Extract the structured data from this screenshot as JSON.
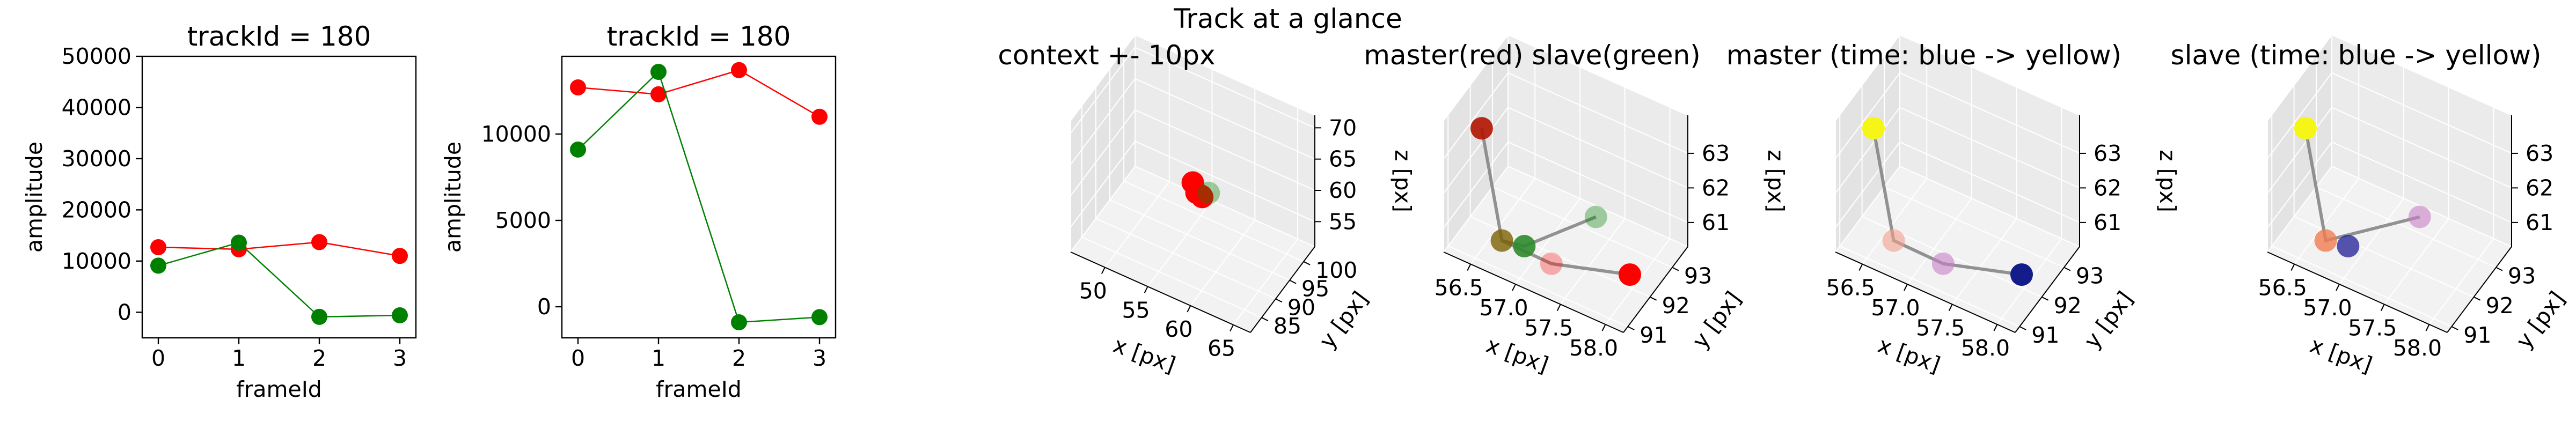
{
  "figure": {
    "title": "Track at a glance"
  },
  "chart_data": [
    {
      "type": "line",
      "title": "trackId = 180",
      "xlabel": "frameId",
      "ylabel": "amplitude",
      "x": [
        0,
        1,
        2,
        3
      ],
      "xticks": [
        0,
        1,
        2,
        3
      ],
      "xlim": [
        -0.2,
        3.2
      ],
      "yticks": [
        0,
        10000,
        20000,
        30000,
        40000,
        50000
      ],
      "ylim": [
        -5000,
        50000
      ],
      "grid": false,
      "series": [
        {
          "color": "#ff0000",
          "values": [
            12700,
            12300,
            13700,
            11000
          ]
        },
        {
          "color": "#008000",
          "values": [
            9100,
            13600,
            -900,
            -600
          ]
        }
      ]
    },
    {
      "type": "line",
      "title": "trackId = 180",
      "xlabel": "frameId",
      "ylabel": "amplitude",
      "x": [
        0,
        1,
        2,
        3
      ],
      "xticks": [
        0,
        1,
        2,
        3
      ],
      "xlim": [
        -0.2,
        3.2
      ],
      "yticks": [
        0,
        5000,
        10000
      ],
      "ylim": [
        -1800,
        14500
      ],
      "grid": false,
      "series": [
        {
          "color": "#ff0000",
          "values": [
            12700,
            12300,
            13700,
            11000
          ]
        },
        {
          "color": "#008000",
          "values": [
            9100,
            13600,
            -900,
            -600
          ]
        }
      ]
    },
    {
      "type": "scatter",
      "title": "context +- 10px",
      "xlabel": "x [px]",
      "ylabel": "y [px]",
      "zlabel": "z [px]",
      "xticks": [
        50,
        55,
        60,
        65
      ],
      "yticks": [
        85,
        90,
        95,
        100
      ],
      "zticks": [
        55,
        60,
        65,
        70
      ],
      "xlim": [
        46,
        67
      ],
      "ylim": [
        81,
        104
      ],
      "zlim": [
        51,
        72
      ],
      "points": [
        {
          "x": 56.8,
          "y": 91.6,
          "z": 62.4,
          "color": "#ff0000",
          "alpha": 1
        },
        {
          "x": 57.3,
          "y": 91.4,
          "z": 61.2,
          "color": "#ff0000",
          "alpha": 1
        },
        {
          "x": 57.6,
          "y": 92.2,
          "z": 60.4,
          "color": "#ff0000",
          "alpha": 1
        },
        {
          "x": 58.0,
          "y": 91.3,
          "z": 61.0,
          "color": "#ff0000",
          "alpha": 1
        },
        {
          "x": 58.3,
          "y": 92.7,
          "z": 61.0,
          "color": "#008000",
          "alpha": 0.35
        }
      ]
    },
    {
      "type": "scatter",
      "title": "master(red) slave(green)",
      "xlabel": "x [px]",
      "ylabel": "y [px]",
      "zlabel": "z [px]",
      "xticks": [
        56.5,
        57.0,
        57.5,
        58.0
      ],
      "xtick_labels": [
        "56.5",
        "57.0",
        "57.5",
        "58.0"
      ],
      "yticks": [
        91,
        92,
        93
      ],
      "zticks": [
        61,
        62,
        63
      ],
      "xlim": [
        56.2,
        58.2
      ],
      "ylim": [
        90.8,
        93.7
      ],
      "zlim": [
        60.3,
        64.1
      ],
      "path": [
        [
          56.5,
          91.3,
          63.8
        ],
        [
          56.7,
          91.4,
          60.7
        ],
        [
          57.3,
          91.2,
          60.9
        ],
        [
          58.0,
          91.9,
          60.8
        ]
      ],
      "path2": [
        [
          56.7,
          91.4,
          60.7
        ],
        [
          56.9,
          91.6,
          60.6
        ],
        [
          57.4,
          92.8,
          61.0
        ]
      ],
      "points": [
        {
          "x": 56.5,
          "y": 91.3,
          "z": 63.8,
          "color": "#b01400",
          "alpha": 0.9
        },
        {
          "x": 56.7,
          "y": 91.4,
          "z": 60.7,
          "color": "#7a6000",
          "alpha": 0.8
        },
        {
          "x": 56.9,
          "y": 91.6,
          "z": 60.6,
          "color": "#2e8b2e",
          "alpha": 0.9
        },
        {
          "x": 57.3,
          "y": 91.2,
          "z": 60.9,
          "color": "#ff0000",
          "alpha": 0.3
        },
        {
          "x": 57.4,
          "y": 92.8,
          "z": 61.0,
          "color": "#008000",
          "alpha": 0.35
        },
        {
          "x": 58.0,
          "y": 91.9,
          "z": 60.8,
          "color": "#ff0000",
          "alpha": 1
        }
      ]
    },
    {
      "type": "scatter",
      "title": "master (time: blue -> yellow)",
      "xlabel": "x [px]",
      "ylabel": "y [px]",
      "zlabel": "z [px]",
      "xticks": [
        56.5,
        57.0,
        57.5,
        58.0
      ],
      "xtick_labels": [
        "56.5",
        "57.0",
        "57.5",
        "58.0"
      ],
      "yticks": [
        91,
        92,
        93
      ],
      "zticks": [
        61,
        62,
        63
      ],
      "xlim": [
        56.2,
        58.2
      ],
      "ylim": [
        90.8,
        93.7
      ],
      "zlim": [
        60.3,
        64.1
      ],
      "path": [
        [
          56.5,
          91.3,
          63.8
        ],
        [
          56.7,
          91.4,
          60.7
        ],
        [
          57.3,
          91.2,
          60.9
        ],
        [
          58.0,
          91.9,
          60.8
        ]
      ],
      "points": [
        {
          "x": 56.5,
          "y": 91.3,
          "z": 63.8,
          "color": "#f5f516",
          "alpha": 1
        },
        {
          "x": 56.7,
          "y": 91.4,
          "z": 60.7,
          "color": "#f29f8a",
          "alpha": 0.6
        },
        {
          "x": 57.3,
          "y": 91.2,
          "z": 60.9,
          "color": "#c77fc7",
          "alpha": 0.6
        },
        {
          "x": 58.0,
          "y": 91.9,
          "z": 60.8,
          "color": "#141c8c",
          "alpha": 1
        }
      ]
    },
    {
      "type": "scatter",
      "title": "slave (time: blue -> yellow)",
      "xlabel": "x [px]",
      "ylabel": "y [px]",
      "zlabel": "z [px]",
      "xticks": [
        56.5,
        57.0,
        57.5,
        58.0
      ],
      "xtick_labels": [
        "56.5",
        "57.0",
        "57.5",
        "58.0"
      ],
      "yticks": [
        91,
        92,
        93
      ],
      "zticks": [
        61,
        62,
        63
      ],
      "xlim": [
        56.2,
        58.2
      ],
      "ylim": [
        90.8,
        93.7
      ],
      "zlim": [
        60.3,
        64.1
      ],
      "path": [
        [
          56.5,
          91.3,
          63.8
        ],
        [
          56.7,
          91.4,
          60.7
        ],
        [
          57.4,
          92.8,
          61.0
        ]
      ],
      "points": [
        {
          "x": 56.5,
          "y": 91.3,
          "z": 63.8,
          "color": "#f5f516",
          "alpha": 1
        },
        {
          "x": 56.7,
          "y": 91.4,
          "z": 60.7,
          "color": "#f07c50",
          "alpha": 0.8
        },
        {
          "x": 56.9,
          "y": 91.6,
          "z": 60.6,
          "color": "#2a2a9c",
          "alpha": 0.8
        },
        {
          "x": 57.4,
          "y": 92.8,
          "z": 61.0,
          "color": "#c77fc7",
          "alpha": 0.6
        }
      ]
    }
  ]
}
